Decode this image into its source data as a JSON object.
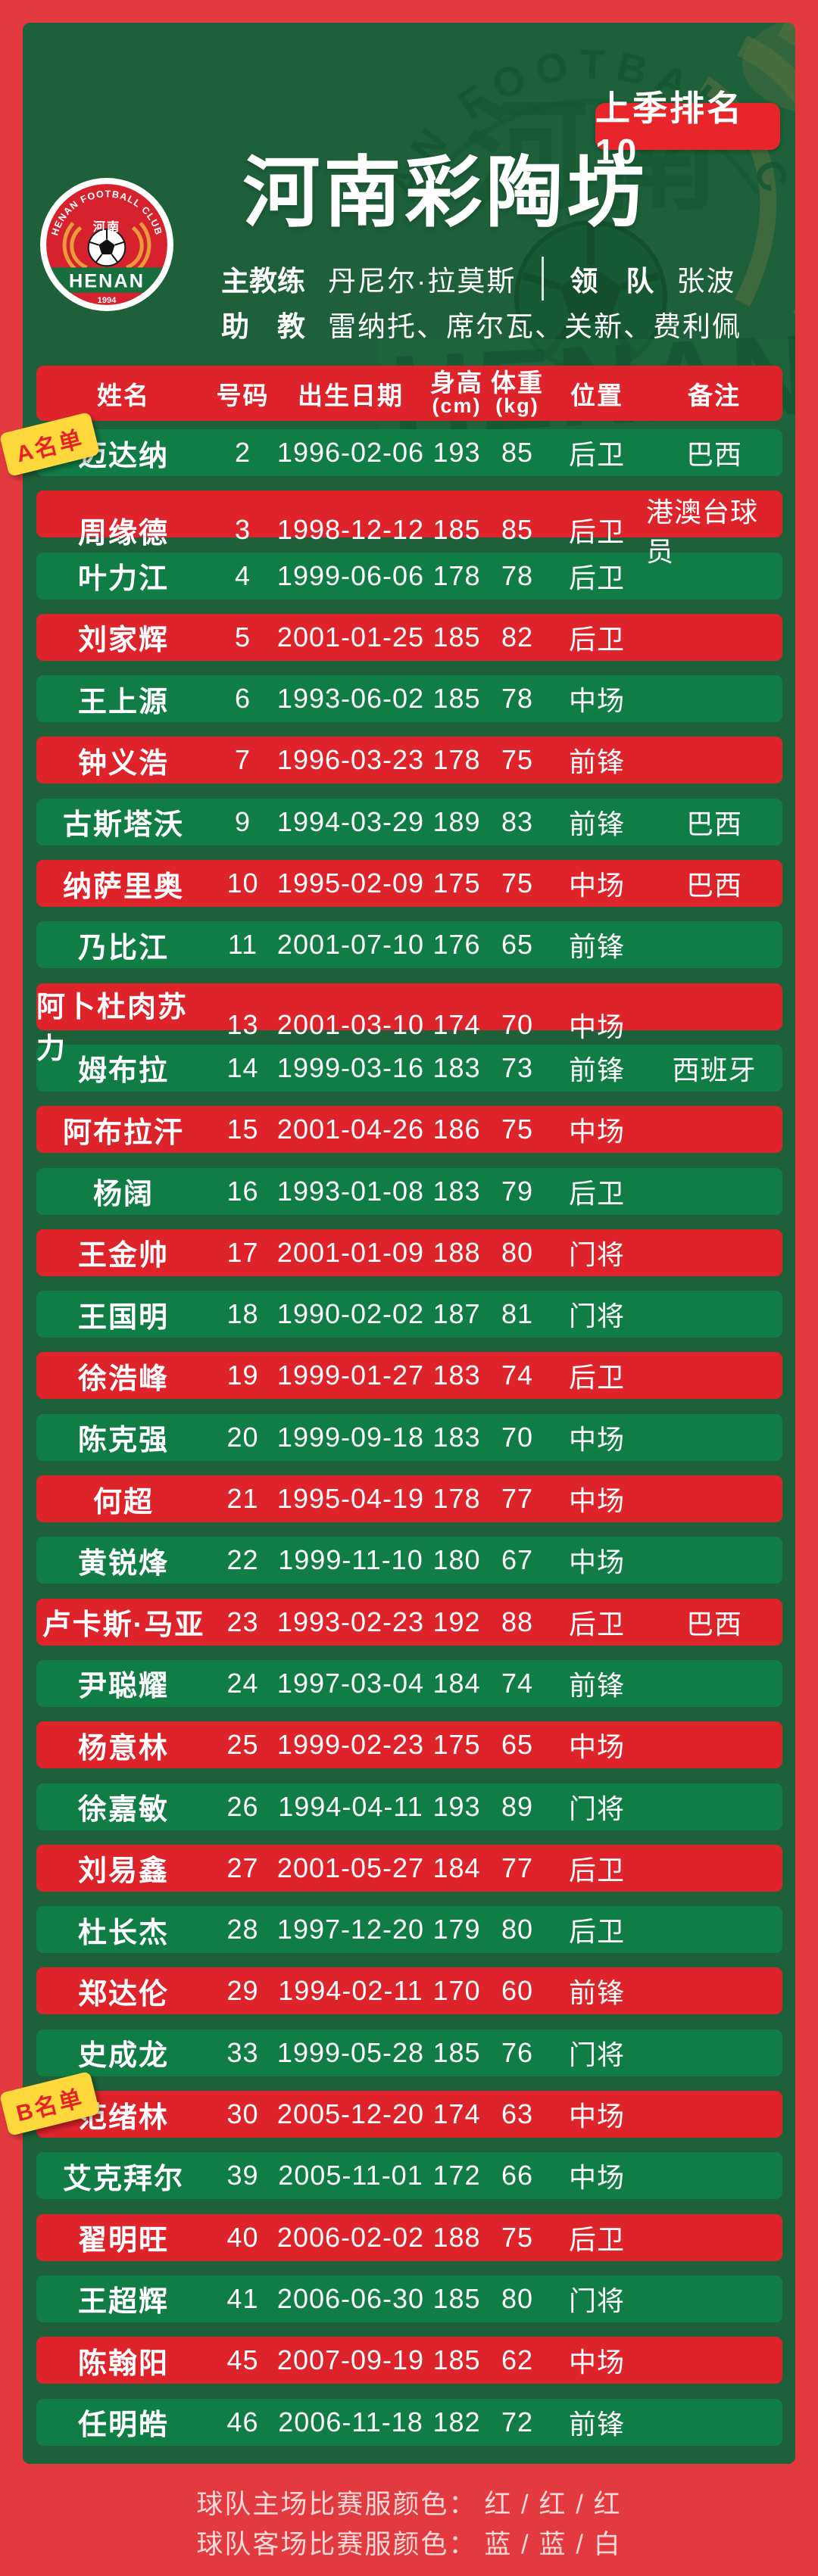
{
  "badge": {
    "label": "上季排名 10"
  },
  "team": {
    "name": "河南彩陶坊",
    "logo": {
      "arc_text": "HENAN FOOTBALL CLUB",
      "cn_name": "河南",
      "en_name": "HENAN",
      "year": "1994"
    }
  },
  "staff": {
    "head_coach_label": "主教练",
    "head_coach": "丹尼尔·拉莫斯",
    "manager_label": "领　队",
    "manager": "张波",
    "assistant_label": "助　教",
    "assistants": "雷纳托、席尔瓦、关新、费利佩"
  },
  "roster": {
    "group_a_label": "A名单",
    "group_b_label": "B名单",
    "headers": {
      "name": "姓名",
      "number": "号码",
      "birth": "出生日期",
      "height": "身高",
      "height_unit": "(cm)",
      "weight": "体重",
      "weight_unit": "(kg)",
      "position": "位置",
      "note": "备注"
    },
    "players": [
      {
        "name": "迈达纳",
        "number": "2",
        "birth": "1996-02-06",
        "height": "193",
        "weight": "85",
        "position": "后卫",
        "note": "巴西",
        "group": "A"
      },
      {
        "name": "周缘德",
        "number": "3",
        "birth": "1998-12-12",
        "height": "185",
        "weight": "85",
        "position": "后卫",
        "note": "港澳台球员",
        "group": "A"
      },
      {
        "name": "叶力江",
        "number": "4",
        "birth": "1999-06-06",
        "height": "178",
        "weight": "78",
        "position": "后卫",
        "note": "",
        "group": "A"
      },
      {
        "name": "刘家辉",
        "number": "5",
        "birth": "2001-01-25",
        "height": "185",
        "weight": "82",
        "position": "后卫",
        "note": "",
        "group": "A"
      },
      {
        "name": "王上源",
        "number": "6",
        "birth": "1993-06-02",
        "height": "185",
        "weight": "78",
        "position": "中场",
        "note": "",
        "group": "A"
      },
      {
        "name": "钟义浩",
        "number": "7",
        "birth": "1996-03-23",
        "height": "178",
        "weight": "75",
        "position": "前锋",
        "note": "",
        "group": "A"
      },
      {
        "name": "古斯塔沃",
        "number": "9",
        "birth": "1994-03-29",
        "height": "189",
        "weight": "83",
        "position": "前锋",
        "note": "巴西",
        "group": "A"
      },
      {
        "name": "纳萨里奥",
        "number": "10",
        "birth": "1995-02-09",
        "height": "175",
        "weight": "75",
        "position": "中场",
        "note": "巴西",
        "group": "A"
      },
      {
        "name": "乃比江",
        "number": "11",
        "birth": "2001-07-10",
        "height": "176",
        "weight": "65",
        "position": "前锋",
        "note": "",
        "group": "A"
      },
      {
        "name": "阿卜杜肉苏力",
        "number": "13",
        "birth": "2001-03-10",
        "height": "174",
        "weight": "70",
        "position": "中场",
        "note": "",
        "group": "A"
      },
      {
        "name": "姆布拉",
        "number": "14",
        "birth": "1999-03-16",
        "height": "183",
        "weight": "73",
        "position": "前锋",
        "note": "西班牙",
        "group": "A"
      },
      {
        "name": "阿布拉汗",
        "number": "15",
        "birth": "2001-04-26",
        "height": "186",
        "weight": "75",
        "position": "中场",
        "note": "",
        "group": "A"
      },
      {
        "name": "杨阔",
        "number": "16",
        "birth": "1993-01-08",
        "height": "183",
        "weight": "79",
        "position": "后卫",
        "note": "",
        "group": "A"
      },
      {
        "name": "王金帅",
        "number": "17",
        "birth": "2001-01-09",
        "height": "188",
        "weight": "80",
        "position": "门将",
        "note": "",
        "group": "A"
      },
      {
        "name": "王国明",
        "number": "18",
        "birth": "1990-02-02",
        "height": "187",
        "weight": "81",
        "position": "门将",
        "note": "",
        "group": "A"
      },
      {
        "name": "徐浩峰",
        "number": "19",
        "birth": "1999-01-27",
        "height": "183",
        "weight": "74",
        "position": "后卫",
        "note": "",
        "group": "A"
      },
      {
        "name": "陈克强",
        "number": "20",
        "birth": "1999-09-18",
        "height": "183",
        "weight": "70",
        "position": "中场",
        "note": "",
        "group": "A"
      },
      {
        "name": "何超",
        "number": "21",
        "birth": "1995-04-19",
        "height": "178",
        "weight": "77",
        "position": "中场",
        "note": "",
        "group": "A"
      },
      {
        "name": "黄锐烽",
        "number": "22",
        "birth": "1999-11-10",
        "height": "180",
        "weight": "67",
        "position": "中场",
        "note": "",
        "group": "A"
      },
      {
        "name": "卢卡斯·马亚",
        "number": "23",
        "birth": "1993-02-23",
        "height": "192",
        "weight": "88",
        "position": "后卫",
        "note": "巴西",
        "group": "A"
      },
      {
        "name": "尹聪耀",
        "number": "24",
        "birth": "1997-03-04",
        "height": "184",
        "weight": "74",
        "position": "前锋",
        "note": "",
        "group": "A"
      },
      {
        "name": "杨意林",
        "number": "25",
        "birth": "1999-02-23",
        "height": "175",
        "weight": "65",
        "position": "中场",
        "note": "",
        "group": "A"
      },
      {
        "name": "徐嘉敏",
        "number": "26",
        "birth": "1994-04-11",
        "height": "193",
        "weight": "89",
        "position": "门将",
        "note": "",
        "group": "A"
      },
      {
        "name": "刘易鑫",
        "number": "27",
        "birth": "2001-05-27",
        "height": "184",
        "weight": "77",
        "position": "后卫",
        "note": "",
        "group": "A"
      },
      {
        "name": "杜长杰",
        "number": "28",
        "birth": "1997-12-20",
        "height": "179",
        "weight": "80",
        "position": "后卫",
        "note": "",
        "group": "A"
      },
      {
        "name": "郑达伦",
        "number": "29",
        "birth": "1994-02-11",
        "height": "170",
        "weight": "60",
        "position": "前锋",
        "note": "",
        "group": "A"
      },
      {
        "name": "史成龙",
        "number": "33",
        "birth": "1999-05-28",
        "height": "185",
        "weight": "76",
        "position": "门将",
        "note": "",
        "group": "A"
      },
      {
        "name": "范绪林",
        "number": "30",
        "birth": "2005-12-20",
        "height": "174",
        "weight": "63",
        "position": "中场",
        "note": "",
        "group": "B"
      },
      {
        "name": "艾克拜尔",
        "number": "39",
        "birth": "2005-11-01",
        "height": "172",
        "weight": "66",
        "position": "中场",
        "note": "",
        "group": "B"
      },
      {
        "name": "翟明旺",
        "number": "40",
        "birth": "2006-02-02",
        "height": "188",
        "weight": "75",
        "position": "后卫",
        "note": "",
        "group": "B"
      },
      {
        "name": "王超辉",
        "number": "41",
        "birth": "2006-06-30",
        "height": "185",
        "weight": "80",
        "position": "门将",
        "note": "",
        "group": "B"
      },
      {
        "name": "陈翰阳",
        "number": "45",
        "birth": "2007-09-19",
        "height": "185",
        "weight": "62",
        "position": "中场",
        "note": "",
        "group": "B"
      },
      {
        "name": "任明皓",
        "number": "46",
        "birth": "2006-11-18",
        "height": "182",
        "weight": "72",
        "position": "前锋",
        "note": "",
        "group": "B"
      }
    ]
  },
  "footer": {
    "home_label": "球队主场比赛服颜色：",
    "home_colors": "红 / 红 / 红",
    "away_label": "球队客场比赛服颜色：",
    "away_colors": "蓝 / 蓝 / 白"
  },
  "colors": {
    "frame_red": "#e23a3e",
    "row_red": "#df232b",
    "row_green": "#107d45",
    "panel_green": "#1d6039",
    "badge_red": "#e8252b",
    "ribbon_yellow": "#ffd93c",
    "ribbon_text_red": "#e42328",
    "footer_text": "#fcd9d8"
  }
}
